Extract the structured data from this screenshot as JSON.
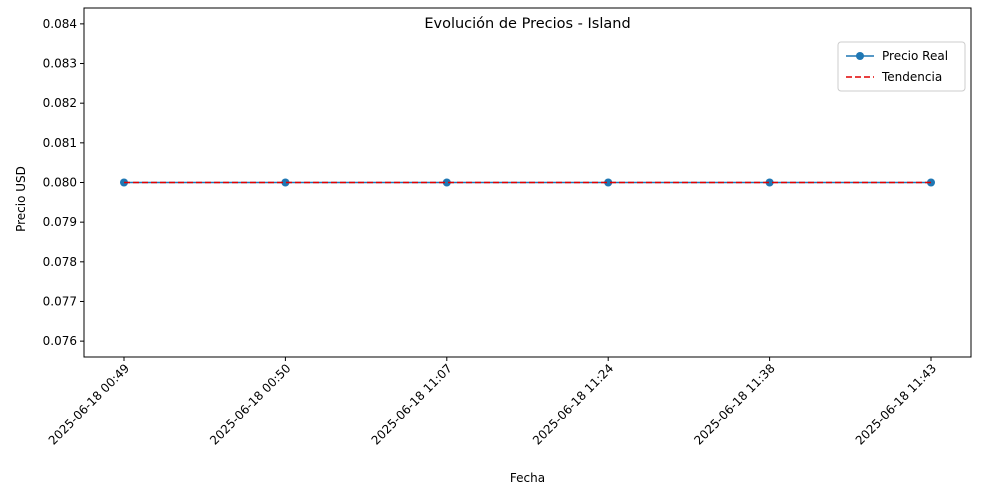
{
  "chart_data": {
    "type": "line",
    "title": "Evolución de Precios - Island",
    "xlabel": "Fecha",
    "ylabel": "Precio USD",
    "categories": [
      "2025-06-18 00:49",
      "2025-06-18 00:50",
      "2025-06-18 11:07",
      "2025-06-18 11:24",
      "2025-06-18 11:38",
      "2025-06-18 11:43"
    ],
    "series": [
      {
        "name": "Precio Real",
        "values": [
          0.08,
          0.08,
          0.08,
          0.08,
          0.08,
          0.08
        ],
        "color": "#1f77b4",
        "style": "solid-with-markers"
      },
      {
        "name": "Tendencia",
        "values": [
          0.08,
          0.08,
          0.08,
          0.08,
          0.08,
          0.08
        ],
        "color": "#e00000",
        "style": "dashed"
      }
    ],
    "ylim": [
      0.0756,
      0.0844
    ],
    "yticks": [
      "0.076",
      "0.077",
      "0.078",
      "0.079",
      "0.080",
      "0.081",
      "0.082",
      "0.083",
      "0.084"
    ],
    "grid": false,
    "legend_position": "top-right"
  }
}
